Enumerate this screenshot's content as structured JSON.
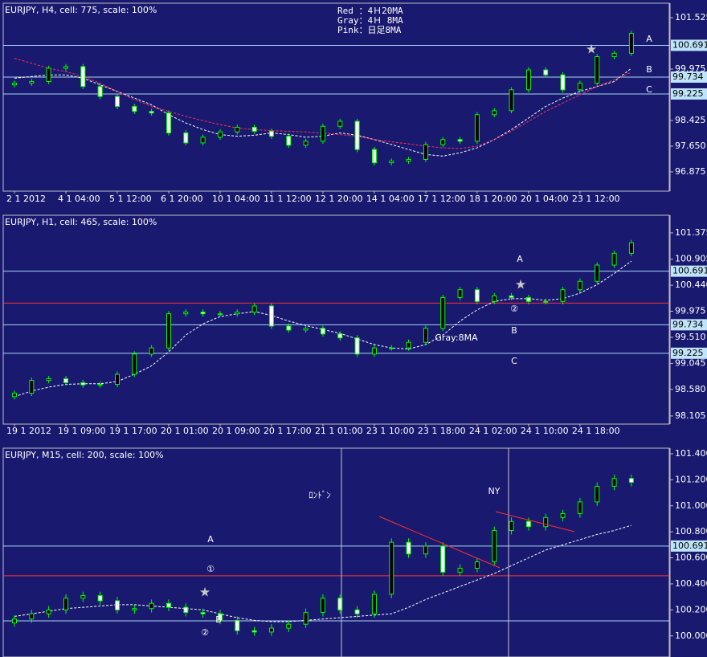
{
  "chart_data": [
    {
      "type": "candlestick",
      "title": "EURJPY, H4, cell: 775, scale: 100%",
      "notes": [
        "Red ：4Ｈ20MA",
        "Gray：4Ｈ 8MA",
        "Pink：日足8MA"
      ],
      "annotations": [
        "A",
        "B",
        "C"
      ],
      "x": [
        "2 1 2012",
        null,
        null,
        "4 1 04:00",
        null,
        null,
        "5 1 12:00",
        null,
        null,
        "6 1 20:00",
        null,
        null,
        "10 1 04:00",
        null,
        null,
        "11 1 12:00",
        null,
        null,
        "12 1 20:00",
        null,
        null,
        "14 1 04:00",
        null,
        null,
        "17 1 12:00",
        null,
        null,
        "18 1 20:00",
        null,
        null,
        "20 1 04:00",
        null,
        null,
        "23 1 12:00",
        null,
        null,
        null
      ],
      "ohlc": [
        [
          99.5,
          99.63,
          99.42,
          99.55
        ],
        [
          99.55,
          99.68,
          99.47,
          99.6
        ],
        [
          99.6,
          100.08,
          99.52,
          100.0
        ],
        [
          100.0,
          100.13,
          99.92,
          100.05
        ],
        [
          100.05,
          100.13,
          99.37,
          99.45
        ],
        [
          99.45,
          99.53,
          99.07,
          99.15
        ],
        [
          99.15,
          99.23,
          98.77,
          98.85
        ],
        [
          98.85,
          98.93,
          98.62,
          98.7
        ],
        [
          98.7,
          98.78,
          98.57,
          98.65
        ],
        [
          98.65,
          98.73,
          97.97,
          98.05
        ],
        [
          98.05,
          98.13,
          97.67,
          97.75
        ],
        [
          97.75,
          98.0,
          97.67,
          97.92
        ],
        [
          97.92,
          98.16,
          97.84,
          98.08
        ],
        [
          98.08,
          98.3,
          98.0,
          98.22
        ],
        [
          98.22,
          98.3,
          98.02,
          98.1
        ],
        [
          98.1,
          98.18,
          97.87,
          97.95
        ],
        [
          97.95,
          98.03,
          97.6,
          97.68
        ],
        [
          97.68,
          97.88,
          97.6,
          97.8
        ],
        [
          97.8,
          98.33,
          97.72,
          98.25
        ],
        [
          98.25,
          98.48,
          98.17,
          98.4
        ],
        [
          98.4,
          98.48,
          97.47,
          97.55
        ],
        [
          97.55,
          97.63,
          97.07,
          97.15
        ],
        [
          97.15,
          97.28,
          97.07,
          97.2
        ],
        [
          97.2,
          97.33,
          97.12,
          97.25
        ],
        [
          97.25,
          97.78,
          97.17,
          97.7
        ],
        [
          97.7,
          97.93,
          97.62,
          97.85
        ],
        [
          97.85,
          97.93,
          97.72,
          97.8
        ],
        [
          97.8,
          98.68,
          97.72,
          98.6
        ],
        [
          98.6,
          98.8,
          98.52,
          98.72
        ],
        [
          98.72,
          99.43,
          98.64,
          99.35
        ],
        [
          99.35,
          100.03,
          99.27,
          99.95
        ],
        [
          99.95,
          100.03,
          99.72,
          99.8
        ],
        [
          99.8,
          99.88,
          99.27,
          99.35
        ],
        [
          99.35,
          99.63,
          99.27,
          99.55
        ],
        [
          99.55,
          100.43,
          99.47,
          100.35
        ],
        [
          100.35,
          100.53,
          100.27,
          100.45
        ],
        [
          100.45,
          101.13,
          100.37,
          101.05
        ]
      ],
      "series": [
        {
          "color": "#ffffff",
          "values": [
            99.7,
            99.75,
            99.8,
            99.8,
            99.7,
            99.5,
            99.3,
            99.1,
            98.9,
            98.6,
            98.35,
            98.15,
            98.0,
            97.95,
            97.98,
            98.05,
            98.0,
            97.92,
            97.95,
            98.05,
            97.98,
            97.85,
            97.7,
            97.55,
            97.4,
            97.35,
            97.45,
            97.6,
            97.85,
            98.15,
            98.5,
            98.85,
            99.1,
            99.3,
            99.45,
            99.6,
            100.0
          ]
        },
        {
          "color": "#ff3050",
          "values": [
            100.3,
            100.15,
            100.0,
            99.9,
            99.75,
            99.55,
            99.3,
            99.05,
            98.85,
            98.7,
            98.55,
            98.42,
            98.3,
            98.2,
            98.15,
            98.12,
            98.1,
            98.08,
            98.05,
            98.0,
            97.95,
            97.85,
            97.78,
            97.72,
            97.65,
            97.6,
            97.58,
            97.65,
            97.85,
            98.1,
            98.4,
            98.7,
            98.95,
            99.2,
            99.45,
            99.65,
            99.88
          ]
        }
      ],
      "levels": [
        {
          "value": 100.691,
          "color": "#a8d8f0",
          "tag": true
        },
        {
          "value": 99.734,
          "color": "#a8d8f0",
          "tag": true
        },
        {
          "value": 99.225,
          "color": "#a8d8f0",
          "tag": true
        }
      ],
      "ylim": [
        96.294,
        101.961
      ],
      "yticks": [
        101.525,
        99.975,
        98.425,
        {
          "value": 97.65,
          "label": "97.650"
        },
        96.875
      ],
      "up_color": "#000000",
      "down_color": "#ffffff",
      "wick_color": "#00ff00"
    },
    {
      "type": "candlestick",
      "title": "EURJPY, H1, cell: 465, scale: 100%",
      "annotations": [
        "A",
        "②",
        "B",
        "Gray:8MA",
        "C"
      ],
      "x": [
        "19 1 2012",
        null,
        null,
        "19 1 09:00",
        null,
        null,
        "19 1 17:00",
        null,
        null,
        "20 1 01:00",
        null,
        null,
        "20 1 09:00",
        null,
        null,
        "20 1 17:00",
        null,
        null,
        "21 1 01:00",
        null,
        null,
        "23 1 10:00",
        null,
        null,
        "23 1 18:00",
        null,
        null,
        "24 1 02:00",
        null,
        null,
        "24 1 10:00",
        null,
        null,
        "24 1 18:00",
        null,
        null,
        null
      ],
      "ohlc": [
        [
          98.45,
          98.56,
          98.4,
          98.51
        ],
        [
          98.51,
          98.79,
          98.46,
          98.74
        ],
        [
          98.74,
          98.82,
          98.69,
          98.77
        ],
        [
          98.77,
          98.82,
          98.65,
          98.7
        ],
        [
          98.7,
          98.75,
          98.61,
          98.66
        ],
        [
          98.66,
          98.72,
          98.61,
          98.67
        ],
        [
          98.67,
          98.9,
          98.62,
          98.85
        ],
        [
          98.85,
          99.26,
          98.8,
          99.21
        ],
        [
          99.21,
          99.37,
          99.16,
          99.32
        ],
        [
          99.32,
          99.98,
          99.27,
          99.93
        ],
        [
          99.93,
          100.01,
          99.88,
          99.96
        ],
        [
          99.96,
          100.01,
          99.88,
          99.93
        ],
        [
          99.93,
          99.98,
          99.88,
          99.93
        ],
        [
          99.93,
          100.01,
          99.88,
          99.96
        ],
        [
          99.96,
          100.12,
          99.91,
          100.07
        ],
        [
          100.07,
          100.12,
          99.66,
          99.71
        ],
        [
          99.71,
          99.76,
          99.59,
          99.64
        ],
        [
          99.64,
          99.72,
          99.59,
          99.67
        ],
        [
          99.67,
          99.72,
          99.52,
          99.57
        ],
        [
          99.57,
          99.62,
          99.45,
          99.5
        ],
        [
          99.5,
          99.55,
          99.16,
          99.21
        ],
        [
          99.21,
          99.37,
          99.16,
          99.32
        ],
        [
          99.32,
          99.37,
          99.27,
          99.32
        ],
        [
          99.32,
          99.47,
          99.27,
          99.42
        ],
        [
          99.42,
          99.72,
          99.37,
          99.67
        ],
        [
          99.67,
          100.27,
          99.62,
          100.22
        ],
        [
          100.22,
          100.41,
          100.17,
          100.36
        ],
        [
          100.36,
          100.41,
          100.1,
          100.15
        ],
        [
          100.15,
          100.3,
          100.1,
          100.25
        ],
        [
          100.25,
          100.3,
          100.17,
          100.22
        ],
        [
          100.22,
          100.27,
          100.1,
          100.15
        ],
        [
          100.15,
          100.2,
          100.1,
          100.15
        ],
        [
          100.15,
          100.41,
          100.1,
          100.36
        ],
        [
          100.36,
          100.56,
          100.31,
          100.51
        ],
        [
          100.51,
          100.85,
          100.46,
          100.8
        ],
        [
          100.8,
          101.06,
          100.75,
          101.01
        ],
        [
          101.01,
          101.25,
          100.96,
          101.2
        ]
      ],
      "series": [
        {
          "color": "#ffffff",
          "values": [
            98.45,
            98.55,
            98.62,
            98.67,
            98.68,
            98.68,
            98.72,
            98.85,
            99.0,
            99.25,
            99.55,
            99.75,
            99.88,
            99.93,
            99.97,
            99.9,
            99.8,
            99.72,
            99.65,
            99.58,
            99.48,
            99.38,
            99.32,
            99.3,
            99.38,
            99.55,
            99.8,
            100.0,
            100.15,
            100.2,
            100.2,
            100.17,
            100.2,
            100.3,
            100.45,
            100.65,
            100.87
          ]
        }
      ],
      "levels": [
        {
          "value": 100.691,
          "color": "#a8d8f0",
          "tag": true
        },
        {
          "value": 100.12,
          "color": "#ff3030",
          "tag": false
        },
        {
          "value": 99.734,
          "color": "#a8d8f0",
          "tag": true
        },
        {
          "value": 99.225,
          "color": "#a8d8f0",
          "tag": true
        }
      ],
      "ylim": [
        97.96,
        101.69
      ],
      "yticks": [
        101.375,
        100.905,
        {
          "value": 100.44,
          "label": "100.440"
        },
        99.975,
        {
          "value": 99.51,
          "label": "99.510"
        },
        99.045,
        {
          "value": 98.58,
          "label": "98.580"
        },
        98.105
      ],
      "up_color": "#000000",
      "down_color": "#ffffff",
      "wick_color": "#00ff00"
    },
    {
      "type": "candlestick",
      "title": "EURJPY, M15, cell: 200, scale: 100%",
      "annotations": [
        "ﾛﾝﾄﾞﾝ",
        "NY",
        "A",
        "①",
        "B",
        "②"
      ],
      "ohlc": [
        [
          100.1,
          100.16,
          100.07,
          100.13
        ],
        [
          100.13,
          100.2,
          100.1,
          100.17
        ],
        [
          100.17,
          100.23,
          100.14,
          100.2
        ],
        [
          100.2,
          100.32,
          100.17,
          100.29
        ],
        [
          100.29,
          100.34,
          100.26,
          100.31
        ],
        [
          100.31,
          100.34,
          100.24,
          100.27
        ],
        [
          100.27,
          100.3,
          100.17,
          100.2
        ],
        [
          100.2,
          100.24,
          100.17,
          100.21
        ],
        [
          100.21,
          100.28,
          100.18,
          100.25
        ],
        [
          100.25,
          100.28,
          100.19,
          100.22
        ],
        [
          100.22,
          100.25,
          100.15,
          100.18
        ],
        [
          100.18,
          100.21,
          100.14,
          100.17
        ],
        [
          100.17,
          100.2,
          100.09,
          100.12
        ],
        [
          100.12,
          100.15,
          100.01,
          100.04
        ],
        [
          100.04,
          100.07,
          100.0,
          100.03
        ],
        [
          100.03,
          100.09,
          100.0,
          100.06
        ],
        [
          100.06,
          100.12,
          100.03,
          100.09
        ],
        [
          100.09,
          100.21,
          100.06,
          100.18
        ],
        [
          100.18,
          100.32,
          100.15,
          100.29
        ],
        [
          100.29,
          100.32,
          100.17,
          100.2
        ],
        [
          100.2,
          100.23,
          100.14,
          100.17
        ],
        [
          100.17,
          100.35,
          100.14,
          100.32
        ],
        [
          100.32,
          100.75,
          100.29,
          100.72
        ],
        [
          100.72,
          100.75,
          100.6,
          100.63
        ],
        [
          100.63,
          100.72,
          100.6,
          100.69
        ],
        [
          100.69,
          100.72,
          100.46,
          100.49
        ],
        [
          100.49,
          100.55,
          100.46,
          100.52
        ],
        [
          100.52,
          100.6,
          100.49,
          100.57
        ],
        [
          100.57,
          100.84,
          100.54,
          100.81
        ],
        [
          100.81,
          100.91,
          100.78,
          100.88
        ],
        [
          100.88,
          100.91,
          100.81,
          100.84
        ],
        [
          100.84,
          100.94,
          100.81,
          100.91
        ],
        [
          100.91,
          100.97,
          100.88,
          100.94
        ],
        [
          100.94,
          101.06,
          100.91,
          101.03
        ],
        [
          101.03,
          101.18,
          101.0,
          101.15
        ],
        [
          101.15,
          101.24,
          101.12,
          101.21
        ],
        [
          101.21,
          101.24,
          101.15,
          101.18
        ]
      ],
      "series": [
        {
          "color": "#ffffff",
          "values": [
            100.15,
            100.17,
            100.19,
            100.21,
            100.22,
            100.23,
            100.24,
            100.24,
            100.23,
            100.22,
            100.21,
            100.2,
            100.17,
            100.14,
            100.12,
            100.11,
            100.11,
            100.12,
            100.13,
            100.14,
            100.15,
            100.16,
            100.17,
            100.22,
            100.28,
            100.33,
            100.38,
            100.43,
            100.48,
            100.54,
            100.6,
            100.66,
            100.7,
            100.74,
            100.78,
            100.81,
            100.85
          ]
        }
      ],
      "levels": [
        {
          "value": 100.691,
          "color": "#a8d8f0",
          "tag": true
        },
        {
          "value": 100.462,
          "color": "#ff3030",
          "tag": false
        },
        {
          "value": 100.116,
          "color": "#a8d8f0",
          "tag": false
        }
      ],
      "ylim": [
        99.838,
        101.443
      ],
      "yticks": [
        {
          "value": 101.4,
          "label": "101.400"
        },
        {
          "value": 101.2,
          "label": "101.200"
        },
        {
          "value": 101.0,
          "label": "101.000"
        },
        {
          "value": 100.8,
          "label": "100.800"
        },
        {
          "value": 100.6,
          "label": "100.600"
        },
        {
          "value": 100.4,
          "label": "100.400"
        },
        {
          "value": 100.2,
          "label": "100.200"
        },
        {
          "value": 100.0,
          "label": "100.000"
        }
      ],
      "up_color": "#000000",
      "down_color": "#ffffff",
      "wick_color": "#00ff00"
    }
  ]
}
